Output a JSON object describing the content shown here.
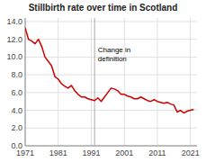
{
  "chart_data": {
    "type": "line",
    "title": "Stillbirth rate over time in Scotland",
    "x": [
      1971,
      1972,
      1973,
      1974,
      1975,
      1976,
      1977,
      1978,
      1979,
      1980,
      1981,
      1982,
      1983,
      1984,
      1985,
      1986,
      1987,
      1988,
      1989,
      1990,
      1991,
      1992,
      1993,
      1994,
      1995,
      1996,
      1997,
      1998,
      1999,
      2000,
      2001,
      2002,
      2003,
      2004,
      2005,
      2006,
      2007,
      2008,
      2009,
      2010,
      2011,
      2012,
      2013,
      2014,
      2015,
      2016,
      2017,
      2018,
      2019,
      2020,
      2021,
      2022
    ],
    "values": [
      13.3,
      12.0,
      11.8,
      11.5,
      12.0,
      11.2,
      10.0,
      9.5,
      9.0,
      7.8,
      7.5,
      7.0,
      6.7,
      6.5,
      6.8,
      6.2,
      5.8,
      5.5,
      5.5,
      5.3,
      5.2,
      5.1,
      5.4,
      5.0,
      5.5,
      6.0,
      6.5,
      6.4,
      6.2,
      5.8,
      5.8,
      5.6,
      5.5,
      5.3,
      5.3,
      5.5,
      5.3,
      5.1,
      5.0,
      5.2,
      5.0,
      4.9,
      4.8,
      4.9,
      4.7,
      4.6,
      3.8,
      4.0,
      3.7,
      3.9,
      4.0,
      4.1
    ],
    "color": "#cc0000",
    "xlim": [
      1971,
      2023
    ],
    "ylim": [
      0,
      14.4
    ],
    "xticks": [
      1971,
      1981,
      1991,
      2001,
      2011,
      2021
    ],
    "yticks": [
      {
        "value": 0.0,
        "label": "0.0"
      },
      {
        "value": 2.0,
        "label": "2.0"
      },
      {
        "value": 4.0,
        "label": "4.0"
      },
      {
        "value": 6.0,
        "label": "6.0"
      },
      {
        "value": 8.0,
        "label": "8.0"
      },
      {
        "value": 10.0,
        "label": "10.0"
      },
      {
        "value": 12.0,
        "label": "12.0"
      },
      {
        "value": 14.0,
        "label": "14.0"
      }
    ],
    "grid": true,
    "reference_lines": [
      {
        "x": 1992,
        "color": "#aaaaaa"
      }
    ],
    "annotations": [
      {
        "text": "Change in\ndefinition",
        "x": 1993,
        "y": 11.2
      }
    ]
  }
}
